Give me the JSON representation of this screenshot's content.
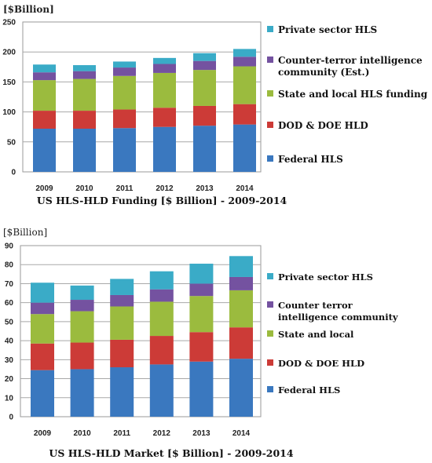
{
  "chart_data": [
    {
      "type": "bar",
      "stacked": true,
      "title": "US HLS-HLD Funding [$ Billion] - 2009-2014",
      "ylabel": "[$Billion]",
      "xlabel": "",
      "ylim": [
        0,
        250
      ],
      "yticks": [
        0,
        50,
        100,
        150,
        200,
        250
      ],
      "grid": true,
      "legend_position": "right",
      "categories": [
        "2009",
        "2010",
        "2011",
        "2012",
        "2013",
        "2014"
      ],
      "series": [
        {
          "name": "Federal HLS",
          "color": "#3a78bf",
          "values": [
            72,
            72,
            73,
            75,
            77,
            79
          ]
        },
        {
          "name": "DOD & DOE HLD",
          "color": "#cc3b37",
          "values": [
            30,
            30,
            31,
            32,
            33,
            34
          ]
        },
        {
          "name": "State and local HLS funding",
          "color": "#9bbb3e",
          "values": [
            51,
            53,
            56,
            58,
            60,
            63
          ]
        },
        {
          "name": "Counter-terror intelligence community (Est.)",
          "color": "#7452a0",
          "values": [
            13,
            13,
            14,
            15,
            15,
            16
          ]
        },
        {
          "name": "Private sector HLS",
          "color": "#3aabc7",
          "values": [
            13,
            10,
            10,
            10,
            13,
            13
          ]
        }
      ],
      "legend_lines": [
        [
          "Private sector HLS"
        ],
        [
          "Counter-terror intelligence",
          "community (Est.)"
        ],
        [
          "State and local HLS funding"
        ],
        [
          "DOD & DOE HLD"
        ],
        [
          "Federal HLS"
        ]
      ]
    },
    {
      "type": "bar",
      "stacked": true,
      "title": "US HLS-HLD Market [$ Billion] - 2009-2014",
      "ylabel": "[$Billion]",
      "xlabel": "",
      "ylim": [
        0,
        90
      ],
      "yticks": [
        0,
        10,
        20,
        30,
        40,
        50,
        60,
        70,
        80,
        90
      ],
      "grid": true,
      "legend_position": "right",
      "categories": [
        "2009",
        "2010",
        "2011",
        "2012",
        "2013",
        "2014"
      ],
      "series": [
        {
          "name": "Federal HLS",
          "color": "#3a78bf",
          "values": [
            24.5,
            25,
            26,
            27.5,
            29,
            30.5
          ]
        },
        {
          "name": "DOD & DOE HLD",
          "color": "#cc3b37",
          "values": [
            14,
            14,
            14.5,
            15,
            15.5,
            16.5
          ]
        },
        {
          "name": "State and local",
          "color": "#9bbb3e",
          "values": [
            15.5,
            16.5,
            17.5,
            18,
            19,
            19.5
          ]
        },
        {
          "name": "Counter terror intelligence community",
          "color": "#7452a0",
          "values": [
            6,
            6,
            6,
            6.5,
            6.5,
            7
          ]
        },
        {
          "name": "Private sector HLS",
          "color": "#3aabc7",
          "values": [
            10.5,
            7.5,
            8.5,
            9.5,
            10.5,
            11
          ]
        }
      ],
      "legend_lines": [
        [
          "Private sector HLS"
        ],
        [
          "Counter terror",
          "intelligence community"
        ],
        [
          "State and local"
        ],
        [
          "DOD & DOE HLD"
        ],
        [
          "Federal HLS"
        ]
      ]
    }
  ]
}
